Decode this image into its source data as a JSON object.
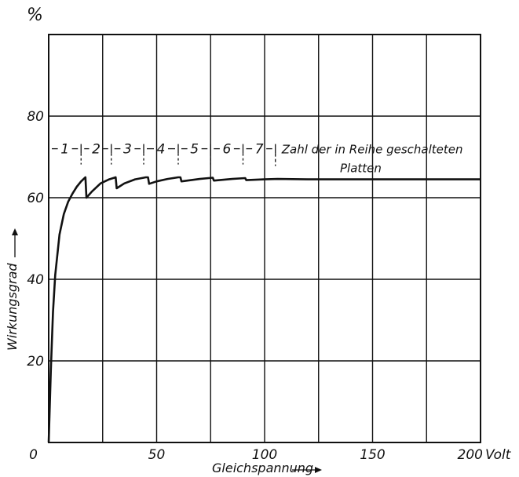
{
  "chart_data": {
    "type": "line",
    "title": "",
    "xlabel": "Gleichspannung",
    "ylabel": "Wirkungsgrad",
    "yunit": "%",
    "xunit": "Volt",
    "xlim": [
      0,
      200
    ],
    "ylim": [
      0,
      100
    ],
    "grid": true,
    "x_ticks": [
      0,
      50,
      100,
      150,
      200
    ],
    "x_tick_labels": [
      "0",
      "50",
      "100",
      "150",
      "200"
    ],
    "y_ticks": [
      20,
      40,
      60,
      80
    ],
    "y_tick_labels": [
      "20",
      "40",
      "60",
      "80"
    ],
    "series": [
      {
        "x": [
          0,
          1,
          2,
          3,
          5,
          7,
          9,
          11,
          13,
          15,
          17,
          17.5,
          20,
          24,
          28,
          31,
          31.5,
          35,
          40,
          45,
          46,
          46.5,
          50,
          55,
          60,
          61,
          61.5,
          70,
          76,
          76.5,
          85,
          91,
          91.5,
          100,
          106,
          120,
          150,
          200
        ],
        "y": [
          0,
          18,
          32,
          41,
          51,
          56,
          59,
          61,
          62.7,
          64,
          65,
          60,
          61.5,
          63.5,
          64.5,
          65,
          62.3,
          63.5,
          64.5,
          65,
          65,
          63.4,
          64,
          64.6,
          65,
          65,
          64,
          64.6,
          64.9,
          64.2,
          64.6,
          64.8,
          64.3,
          64.5,
          64.6,
          64.5,
          64.5,
          64.5
        ]
      }
    ],
    "annotation": {
      "segments": [
        {
          "label": "1",
          "x_start": 0,
          "x_end": 15
        },
        {
          "label": "2",
          "x_start": 15,
          "x_end": 29
        },
        {
          "label": "3",
          "x_start": 29,
          "x_end": 44
        },
        {
          "label": "4",
          "x_start": 44,
          "x_end": 60
        },
        {
          "label": "5",
          "x_start": 60,
          "x_end": 75
        },
        {
          "label": "6",
          "x_start": 75,
          "x_end": 90
        },
        {
          "label": "7",
          "x_start": 90,
          "x_end": 105
        }
      ],
      "level_y": 72,
      "text_line1": "Zahl der in Reihe geschalteten",
      "text_line2": "Platten"
    }
  }
}
